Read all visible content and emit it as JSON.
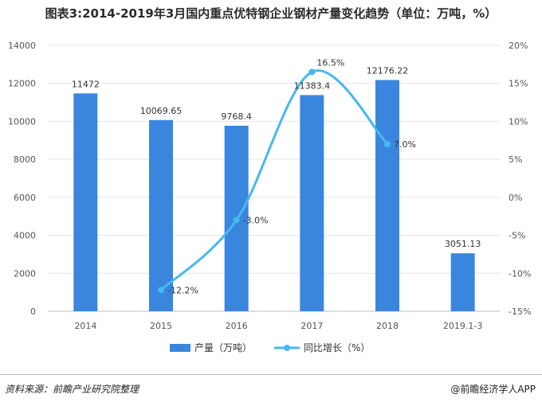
{
  "chart_data": {
    "type": "bar",
    "title": "图表3:2014-2019年3月国内重点优特钢企业钢材产量变化趋势（单位：万吨，%）",
    "categories": [
      "2014",
      "2015",
      "2016",
      "2017",
      "2018",
      "2019.1-3"
    ],
    "series": [
      {
        "name": "产量（万吨）",
        "type": "bar",
        "axis": "left",
        "values": [
          11472,
          10069.65,
          9768.4,
          11383.4,
          12176.22,
          3051.13
        ],
        "labels": [
          "11472",
          "10069.65",
          "9768.4",
          "11383.4",
          "12176.22",
          "3051.13"
        ]
      },
      {
        "name": "同比增长（%）",
        "type": "line",
        "axis": "right",
        "values": [
          null,
          -12.2,
          -3.0,
          16.5,
          7.0,
          null
        ],
        "labels": [
          "",
          "-12.2%",
          "-3.0%",
          "16.5%",
          "7.0%",
          ""
        ]
      }
    ],
    "ylim_left": [
      0,
      14000
    ],
    "yticks_left": [
      "0",
      "2000",
      "4000",
      "6000",
      "8000",
      "10000",
      "12000",
      "14000"
    ],
    "ylim_right": [
      -15,
      20
    ],
    "yticks_right": [
      "-15%",
      "-10%",
      "-5%",
      "0%",
      "5%",
      "10%",
      "15%",
      "20%"
    ],
    "legend": "bottom-center",
    "colors": {
      "bar": "#3a86de",
      "line": "#47b8f0"
    }
  },
  "footer": {
    "source": "资料来源：前瞻产业研究院整理",
    "brand": "@前瞻经济学人APP"
  }
}
